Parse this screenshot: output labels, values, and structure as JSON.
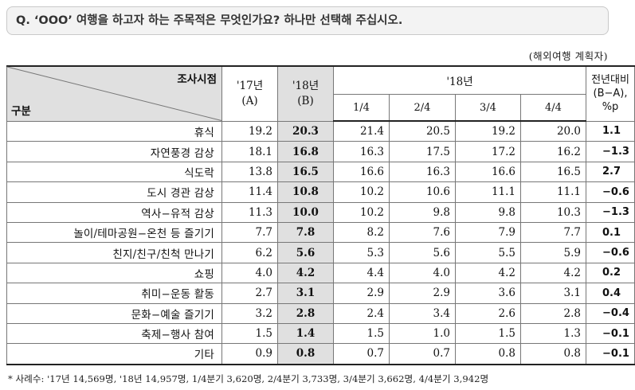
{
  "question": "Q. ‘OOO’ 여행을 하고자 하는 주목적은 무엇인가요? 하나만 선택해 주십시오.",
  "unit_note": "(해외여행 계획자)",
  "header": {
    "corner_top": "조사시점",
    "corner_bottom": "구분",
    "col17_line1": "'17년",
    "col17_line2": "(A)",
    "col18_line1": "'18년",
    "col18_line2": "(B)",
    "group18": "'18년",
    "quarters": [
      "1/4",
      "2/4",
      "3/4",
      "4/4"
    ],
    "yoy_line1": "전년대비",
    "yoy_line2": "(B−A),",
    "yoy_line3": "%p"
  },
  "rows": [
    {
      "label": "휴식",
      "y17": "19.2",
      "y18": "20.3",
      "q1": "21.4",
      "q2": "20.5",
      "q3": "19.2",
      "q4": "20.0",
      "yoy": "1.1"
    },
    {
      "label": "자연풍경 감상",
      "y17": "18.1",
      "y18": "16.8",
      "q1": "16.3",
      "q2": "17.5",
      "q3": "17.2",
      "q4": "16.2",
      "yoy": "−1.3"
    },
    {
      "label": "식도락",
      "y17": "13.8",
      "y18": "16.5",
      "q1": "16.6",
      "q2": "16.3",
      "q3": "16.6",
      "q4": "16.5",
      "yoy": "2.7"
    },
    {
      "label": "도시 경관 감상",
      "y17": "11.4",
      "y18": "10.8",
      "q1": "10.2",
      "q2": "10.6",
      "q3": "11.1",
      "q4": "11.1",
      "yoy": "−0.6"
    },
    {
      "label": "역사−유적 감상",
      "y17": "11.3",
      "y18": "10.0",
      "q1": "10.2",
      "q2": "9.8",
      "q3": "9.8",
      "q4": "10.3",
      "yoy": "−1.3"
    },
    {
      "label": "놀이/테마공원−온천 등 즐기기",
      "y17": "7.7",
      "y18": "7.8",
      "q1": "8.2",
      "q2": "7.6",
      "q3": "7.9",
      "q4": "7.7",
      "yoy": "0.1"
    },
    {
      "label": "친지/친구/친척 만나기",
      "y17": "6.2",
      "y18": "5.6",
      "q1": "5.3",
      "q2": "5.6",
      "q3": "5.5",
      "q4": "5.9",
      "yoy": "−0.6"
    },
    {
      "label": "쇼핑",
      "y17": "4.0",
      "y18": "4.2",
      "q1": "4.4",
      "q2": "4.0",
      "q3": "4.2",
      "q4": "4.2",
      "yoy": "0.2"
    },
    {
      "label": "취미−운동 활동",
      "y17": "2.7",
      "y18": "3.1",
      "q1": "2.9",
      "q2": "2.9",
      "q3": "3.6",
      "q4": "3.1",
      "yoy": "0.4"
    },
    {
      "label": "문화−예술 즐기기",
      "y17": "3.2",
      "y18": "2.8",
      "q1": "2.4",
      "q2": "3.4",
      "q3": "2.6",
      "q4": "2.8",
      "yoy": "−0.4"
    },
    {
      "label": "축제−행사 참여",
      "y17": "1.5",
      "y18": "1.4",
      "q1": "1.5",
      "q2": "1.0",
      "q3": "1.5",
      "q4": "1.3",
      "yoy": "−0.1"
    },
    {
      "label": "기타",
      "y17": "0.9",
      "y18": "0.8",
      "q1": "0.7",
      "q2": "0.7",
      "q3": "0.8",
      "q4": "0.8",
      "yoy": "−0.1"
    }
  ],
  "footnote": "* 사례수: '17년 14,569명, '18년 14,957명, 1/4분기 3,620명, 2/4분기 3,733명, 3/4분기 3,662명, 4/4분기 3,942명",
  "colors": {
    "header_shade": "#e0e0e0",
    "question_bg": "#f3f3f3"
  }
}
